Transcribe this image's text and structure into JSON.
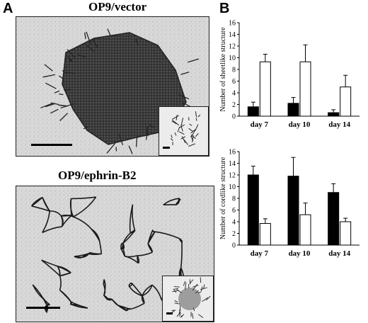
{
  "panel_a": {
    "letter": "A",
    "top_title": "OP9/vector",
    "bottom_title": "OP9/ephrin-B2"
  },
  "panel_b": {
    "letter": "B"
  },
  "colors": {
    "black_bar": "#000000",
    "white_bar": "#ffffff",
    "micrograph_bg": "#e6e6e6",
    "cell_sheet": "#3a3a3a",
    "cord": "#1a1a1a"
  },
  "chart_data": [
    {
      "type": "bar",
      "ylabel": "Number of sheetlike structure",
      "xlabel": "",
      "categories": [
        "day 7",
        "day 10",
        "day 14"
      ],
      "ylim": [
        0,
        16
      ],
      "yticks": [
        0,
        2,
        4,
        6,
        8,
        10,
        12,
        14,
        16
      ],
      "series": [
        {
          "fill": "black",
          "values": [
            1.6,
            2.2,
            0.6
          ],
          "errors": [
            0.8,
            1.0,
            0.5
          ]
        },
        {
          "fill": "white",
          "values": [
            9.3,
            9.3,
            5.0
          ],
          "errors": [
            1.3,
            2.9,
            2.0
          ]
        }
      ]
    },
    {
      "type": "bar",
      "ylabel": "Number of cordlike structure",
      "xlabel": "",
      "categories": [
        "day 7",
        "day 10",
        "day 14"
      ],
      "ylim": [
        0,
        16
      ],
      "yticks": [
        0,
        2,
        4,
        6,
        8,
        10,
        12,
        14,
        16
      ],
      "series": [
        {
          "fill": "black",
          "values": [
            12.0,
            11.8,
            9.0
          ],
          "errors": [
            1.5,
            3.2,
            1.5
          ]
        },
        {
          "fill": "white",
          "values": [
            3.7,
            5.2,
            4.0
          ],
          "errors": [
            0.8,
            2.0,
            0.6
          ]
        }
      ]
    }
  ]
}
